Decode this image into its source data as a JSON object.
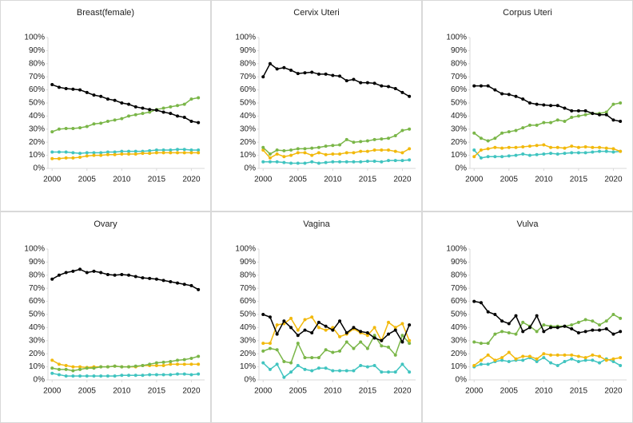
{
  "chart_data": [
    {
      "type": "line",
      "title": "Breast(female)",
      "x": [
        2000,
        2001,
        2002,
        2003,
        2004,
        2005,
        2006,
        2007,
        2008,
        2009,
        2010,
        2011,
        2012,
        2013,
        2014,
        2015,
        2016,
        2017,
        2018,
        2019,
        2020,
        2021
      ],
      "series": [
        {
          "color": "#40c4c0",
          "values": [
            12.5,
            12.5,
            12.5,
            12,
            11.5,
            12,
            12,
            12,
            12.5,
            12.5,
            13,
            13,
            13,
            13,
            13.5,
            14,
            14,
            14,
            14.5,
            14.5,
            14,
            14
          ]
        },
        {
          "color": "#f2b90c",
          "values": [
            7.5,
            7.5,
            8,
            8,
            8.5,
            9.5,
            10,
            10,
            10.5,
            10.5,
            11,
            11,
            11,
            11.5,
            11.5,
            12,
            12,
            12,
            12,
            12,
            12,
            12
          ]
        },
        {
          "color": "#7ab648",
          "values": [
            28,
            30,
            30.5,
            30.5,
            31,
            32,
            34,
            34.5,
            36,
            37,
            38,
            40,
            41,
            42,
            43,
            45,
            46,
            47,
            48,
            49,
            53,
            54
          ]
        },
        {
          "color": "#000000",
          "values": [
            64,
            62,
            61,
            60.5,
            60,
            58,
            56,
            55,
            53,
            52,
            50,
            49,
            47,
            46,
            45,
            44.5,
            43,
            42,
            40,
            39,
            36,
            35
          ]
        }
      ],
      "xlim": [
        1999.4,
        2021.9
      ],
      "xticks": [
        2000,
        2005,
        2010,
        2015,
        2020
      ],
      "ylim": [
        0,
        100
      ],
      "yticks": [
        {
          "value": 0,
          "label": "0%"
        },
        {
          "value": 10,
          "label": "10%"
        },
        {
          "value": 20,
          "label": "20%"
        },
        {
          "value": 30,
          "label": "30%"
        },
        {
          "value": 40,
          "label": "40%"
        },
        {
          "value": 50,
          "label": "50%"
        },
        {
          "value": 60,
          "label": "60%"
        },
        {
          "value": 70,
          "label": "70%"
        },
        {
          "value": 80,
          "label": "80%"
        },
        {
          "value": 90,
          "label": "90%"
        },
        {
          "value": 100,
          "label": "100%"
        }
      ]
    },
    {
      "type": "line",
      "title": "Cervix Uteri",
      "x": [
        2000,
        2001,
        2002,
        2003,
        2004,
        2005,
        2006,
        2007,
        2008,
        2009,
        2010,
        2011,
        2012,
        2013,
        2014,
        2015,
        2016,
        2017,
        2018,
        2019,
        2020,
        2021
      ],
      "series": [
        {
          "color": "#40c4c0",
          "values": [
            5,
            5,
            5,
            4.5,
            4,
            4,
            4,
            5,
            4,
            4.5,
            5,
            5,
            5,
            5,
            5,
            5.5,
            5.5,
            5,
            6,
            6,
            6,
            6.5
          ]
        },
        {
          "color": "#f2b90c",
          "values": [
            14,
            8,
            11,
            9,
            10,
            12,
            12,
            10,
            12,
            10.5,
            11,
            11,
            12,
            12,
            13,
            13,
            14,
            14,
            14,
            13,
            12,
            15
          ]
        },
        {
          "color": "#7ab648",
          "values": [
            16,
            11,
            14,
            13.5,
            14,
            15,
            15,
            15.5,
            16,
            17,
            17.5,
            18,
            22,
            20,
            20.5,
            21,
            22,
            22.5,
            23,
            25,
            29,
            30
          ]
        },
        {
          "color": "#000000",
          "values": [
            70,
            80,
            76,
            77,
            75,
            72.5,
            73,
            73.5,
            72,
            72,
            71,
            70.5,
            67,
            68,
            65.5,
            65.5,
            65,
            63,
            62.5,
            61,
            58,
            55
          ]
        }
      ],
      "xlim": [
        1999.4,
        2021.9
      ],
      "xticks": [
        2000,
        2005,
        2010,
        2015,
        2020
      ],
      "ylim": [
        0,
        100
      ],
      "yticks": [
        {
          "value": 0,
          "label": "0%"
        },
        {
          "value": 10,
          "label": "10%"
        },
        {
          "value": 20,
          "label": "20%"
        },
        {
          "value": 30,
          "label": "30%"
        },
        {
          "value": 40,
          "label": "40%"
        },
        {
          "value": 50,
          "label": "50%"
        },
        {
          "value": 60,
          "label": "60%"
        },
        {
          "value": 70,
          "label": "70%"
        },
        {
          "value": 80,
          "label": "80%"
        },
        {
          "value": 90,
          "label": "90%"
        },
        {
          "value": 100,
          "label": "100%"
        }
      ]
    },
    {
      "type": "line",
      "title": "Corpus Uteri",
      "x": [
        2000,
        2001,
        2002,
        2003,
        2004,
        2005,
        2006,
        2007,
        2008,
        2009,
        2010,
        2011,
        2012,
        2013,
        2014,
        2015,
        2016,
        2017,
        2018,
        2019,
        2020,
        2021
      ],
      "series": [
        {
          "color": "#40c4c0",
          "values": [
            14,
            8,
            9,
            9,
            9,
            9.5,
            10,
            11,
            10,
            10.5,
            11,
            11.5,
            11,
            11.5,
            12,
            12,
            12,
            12.5,
            13,
            13,
            12.5,
            13
          ]
        },
        {
          "color": "#f2b90c",
          "values": [
            9,
            14,
            15,
            16,
            15.5,
            16,
            16,
            16.5,
            17,
            17.5,
            18,
            16,
            16,
            15.5,
            17,
            16,
            16.5,
            16,
            16,
            15.5,
            15,
            13
          ]
        },
        {
          "color": "#7ab648",
          "values": [
            27,
            23,
            21,
            23,
            27,
            28,
            29,
            31,
            33,
            33,
            35,
            35,
            37,
            36,
            39,
            40,
            41,
            42,
            42,
            43,
            49,
            50
          ]
        },
        {
          "color": "#000000",
          "values": [
            63,
            63,
            63,
            60,
            57,
            56.5,
            55,
            53,
            50,
            49,
            48.5,
            48,
            48,
            46,
            44,
            44,
            44,
            42,
            41,
            41,
            37,
            36
          ]
        }
      ],
      "xlim": [
        1999.4,
        2021.9
      ],
      "xticks": [
        2000,
        2005,
        2010,
        2015,
        2020
      ],
      "ylim": [
        0,
        100
      ],
      "yticks": [
        {
          "value": 0,
          "label": "0%"
        },
        {
          "value": 10,
          "label": "10%"
        },
        {
          "value": 20,
          "label": "20%"
        },
        {
          "value": 30,
          "label": "30%"
        },
        {
          "value": 40,
          "label": "40%"
        },
        {
          "value": 50,
          "label": "50%"
        },
        {
          "value": 60,
          "label": "60%"
        },
        {
          "value": 70,
          "label": "70%"
        },
        {
          "value": 80,
          "label": "80%"
        },
        {
          "value": 90,
          "label": "90%"
        },
        {
          "value": 100,
          "label": "100%"
        }
      ]
    },
    {
      "type": "line",
      "title": "Ovary",
      "x": [
        2000,
        2001,
        2002,
        2003,
        2004,
        2005,
        2006,
        2007,
        2008,
        2009,
        2010,
        2011,
        2012,
        2013,
        2014,
        2015,
        2016,
        2017,
        2018,
        2019,
        2020,
        2021
      ],
      "series": [
        {
          "color": "#40c4c0",
          "values": [
            5,
            4,
            3,
            3,
            3,
            3,
            3,
            3,
            3,
            3,
            3.5,
            3.5,
            3.5,
            3.5,
            4,
            4,
            4,
            4,
            4.5,
            4.5,
            4,
            4.5
          ]
        },
        {
          "color": "#f2b90c",
          "values": [
            15,
            12,
            11,
            10,
            10,
            9.5,
            10,
            10,
            10,
            10.5,
            10,
            10,
            10,
            11,
            11,
            11,
            11,
            12,
            12,
            12,
            12,
            12
          ]
        },
        {
          "color": "#7ab648",
          "values": [
            9,
            8,
            8,
            7,
            8,
            9,
            9,
            10,
            10,
            10.5,
            10,
            10,
            10.5,
            11,
            12,
            13,
            13.5,
            14,
            15,
            15.5,
            16.5,
            18
          ]
        },
        {
          "color": "#000000",
          "values": [
            77,
            80,
            82,
            83,
            84.5,
            82,
            83,
            82,
            80.5,
            80,
            80.5,
            80,
            79,
            78,
            77.5,
            77,
            76,
            75,
            74,
            73,
            72,
            69
          ]
        }
      ],
      "xlim": [
        1999.4,
        2021.9
      ],
      "xticks": [
        2000,
        2005,
        2010,
        2015,
        2020
      ],
      "ylim": [
        0,
        100
      ],
      "yticks": [
        {
          "value": 0,
          "label": "0%"
        },
        {
          "value": 10,
          "label": "10%"
        },
        {
          "value": 20,
          "label": "20%"
        },
        {
          "value": 30,
          "label": "30%"
        },
        {
          "value": 40,
          "label": "40%"
        },
        {
          "value": 50,
          "label": "50%"
        },
        {
          "value": 60,
          "label": "60%"
        },
        {
          "value": 70,
          "label": "70%"
        },
        {
          "value": 80,
          "label": "80%"
        },
        {
          "value": 90,
          "label": "90%"
        },
        {
          "value": 100,
          "label": "100%"
        }
      ]
    },
    {
      "type": "line",
      "title": "Vagina",
      "x": [
        2000,
        2001,
        2002,
        2003,
        2004,
        2005,
        2006,
        2007,
        2008,
        2009,
        2010,
        2011,
        2012,
        2013,
        2014,
        2015,
        2016,
        2017,
        2018,
        2019,
        2020,
        2021
      ],
      "series": [
        {
          "color": "#40c4c0",
          "values": [
            13,
            8,
            12,
            2,
            6,
            11,
            8,
            7,
            9,
            9,
            7,
            7,
            7,
            7,
            11,
            10,
            11,
            6,
            6,
            6,
            12,
            6
          ]
        },
        {
          "color": "#7ab648",
          "values": [
            22,
            24,
            23,
            14,
            13,
            28,
            17,
            17,
            17,
            23,
            21,
            22,
            29,
            24,
            29,
            24,
            34,
            26,
            25,
            19,
            34,
            28
          ]
        },
        {
          "color": "#f2b90c",
          "values": [
            28,
            28,
            42,
            43,
            47,
            38,
            46,
            48,
            40,
            38,
            40,
            33,
            35,
            39,
            36,
            34,
            40,
            30,
            44,
            40,
            43,
            30
          ]
        },
        {
          "color": "#000000",
          "values": [
            50,
            48,
            35,
            45,
            40,
            34,
            38,
            36,
            44,
            41,
            38,
            45,
            36,
            40,
            37,
            36,
            32,
            30,
            35,
            38,
            29,
            42
          ]
        }
      ],
      "xlim": [
        1999.4,
        2021.9
      ],
      "xticks": [
        2000,
        2005,
        2010,
        2015,
        2020
      ],
      "ylim": [
        0,
        100
      ],
      "yticks": [
        {
          "value": 0,
          "label": "0%"
        },
        {
          "value": 10,
          "label": "10%"
        },
        {
          "value": 20,
          "label": "20%"
        },
        {
          "value": 30,
          "label": "30%"
        },
        {
          "value": 40,
          "label": "40%"
        },
        {
          "value": 50,
          "label": "50%"
        },
        {
          "value": 60,
          "label": "60%"
        },
        {
          "value": 70,
          "label": "70%"
        },
        {
          "value": 80,
          "label": "80%"
        },
        {
          "value": 90,
          "label": "90%"
        },
        {
          "value": 100,
          "label": "100%"
        }
      ]
    },
    {
      "type": "line",
      "title": "Vulva",
      "x": [
        2000,
        2001,
        2002,
        2003,
        2004,
        2005,
        2006,
        2007,
        2008,
        2009,
        2010,
        2011,
        2012,
        2013,
        2014,
        2015,
        2016,
        2017,
        2018,
        2019,
        2020,
        2021
      ],
      "series": [
        {
          "color": "#40c4c0",
          "values": [
            10,
            12,
            12,
            14,
            15,
            14,
            15,
            15,
            17,
            14,
            17,
            13,
            11,
            14,
            16,
            14,
            15,
            15,
            13,
            16,
            14,
            11
          ]
        },
        {
          "color": "#f2b90c",
          "values": [
            11,
            15,
            19,
            15,
            17,
            21,
            16,
            18,
            18,
            16,
            20,
            19,
            19,
            19,
            19,
            18,
            17,
            19,
            18,
            15,
            16,
            17
          ]
        },
        {
          "color": "#7ab648",
          "values": [
            29,
            28,
            28,
            35,
            37,
            36,
            35,
            44,
            41,
            37,
            42,
            41,
            41,
            41,
            42,
            44,
            46,
            45,
            42,
            45,
            50,
            47
          ]
        },
        {
          "color": "#000000",
          "values": [
            60,
            59,
            52,
            50,
            45,
            43,
            49,
            37,
            40,
            49,
            37,
            40,
            40,
            41,
            39,
            36,
            37,
            38,
            38,
            39,
            35,
            37
          ]
        }
      ],
      "xlim": [
        1999.4,
        2021.9
      ],
      "xticks": [
        2000,
        2005,
        2010,
        2015,
        2020
      ],
      "ylim": [
        0,
        100
      ],
      "yticks": [
        {
          "value": 0,
          "label": "0%"
        },
        {
          "value": 10,
          "label": "10%"
        },
        {
          "value": 20,
          "label": "20%"
        },
        {
          "value": 30,
          "label": "30%"
        },
        {
          "value": 40,
          "label": "40%"
        },
        {
          "value": 50,
          "label": "50%"
        },
        {
          "value": 60,
          "label": "60%"
        },
        {
          "value": 70,
          "label": "70%"
        },
        {
          "value": 80,
          "label": "80%"
        },
        {
          "value": 90,
          "label": "90%"
        },
        {
          "value": 100,
          "label": "100%"
        }
      ]
    }
  ]
}
